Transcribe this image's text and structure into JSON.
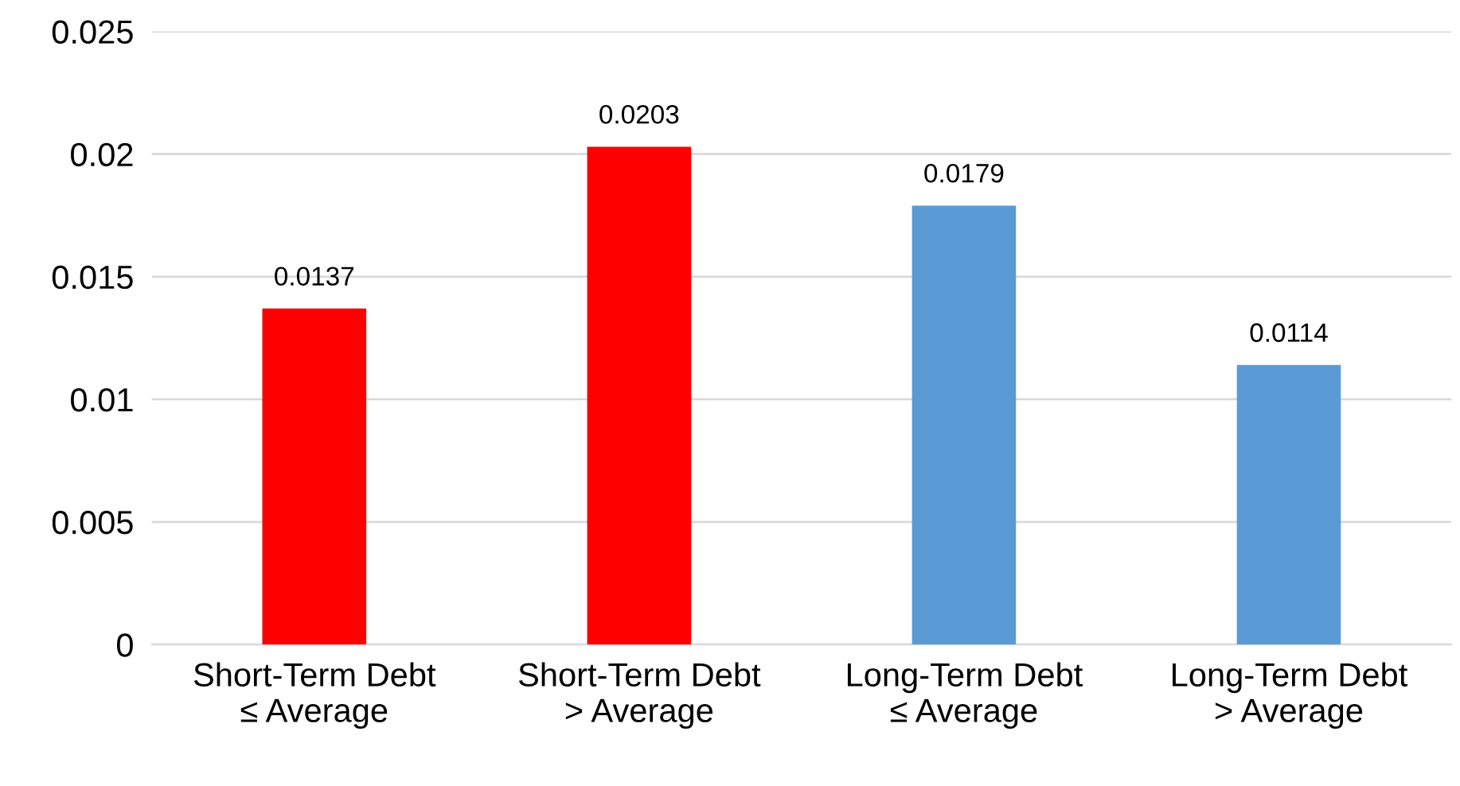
{
  "chart_data": {
    "type": "bar",
    "categories": [
      "Short-Term Debt\n≤ Average",
      "Short-Term Debt\n> Average",
      "Long-Term Debt\n≤ Average",
      "Long-Term Debt\n> Average"
    ],
    "values": [
      0.0137,
      0.0203,
      0.0179,
      0.0114
    ],
    "colors": [
      "#ff0000",
      "#ff0000",
      "#5b9bd5",
      "#5b9bd5"
    ],
    "ylim": [
      0,
      0.025
    ],
    "yticks": [
      0,
      0.005,
      0.01,
      0.015,
      0.02,
      0.025
    ],
    "grid": "y",
    "data_labels": true
  }
}
